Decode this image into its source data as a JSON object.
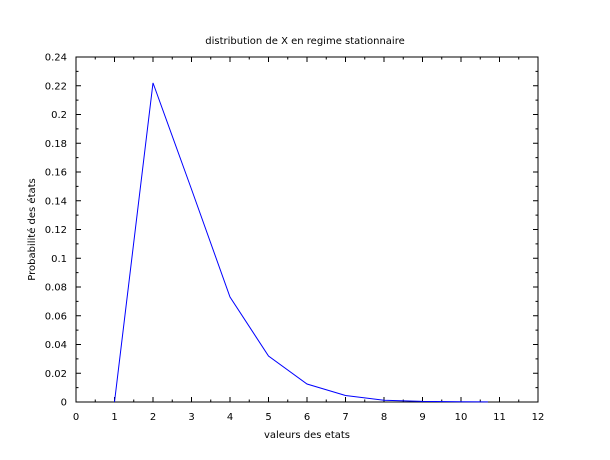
{
  "chart_data": {
    "type": "line",
    "title": "distribution de X en regime stationnaire",
    "xlabel": "valeurs des etats",
    "ylabel": "Probabilité des états",
    "xlim": [
      0,
      12
    ],
    "ylim": [
      0,
      0.24
    ],
    "x_ticks": [
      "0",
      "1",
      "2",
      "3",
      "4",
      "5",
      "6",
      "7",
      "8",
      "9",
      "10",
      "11",
      "12"
    ],
    "y_ticks": [
      "0",
      "0.02",
      "0.04",
      "0.06",
      "0.08",
      "0.1",
      "0.12",
      "0.14",
      "0.16",
      "0.18",
      "0.2",
      "0.22",
      "0.24"
    ],
    "grid": false,
    "legend": "none",
    "series": [
      {
        "color": "#0000ff",
        "x": [
          1,
          2,
          3,
          4,
          5,
          6,
          7,
          8,
          9,
          10,
          10.7
        ],
        "y": [
          0,
          0.222,
          0.148,
          0.073,
          0.032,
          0.0125,
          0.0045,
          0.0012,
          0.0004,
          0.0002,
          0.0001
        ]
      }
    ]
  }
}
